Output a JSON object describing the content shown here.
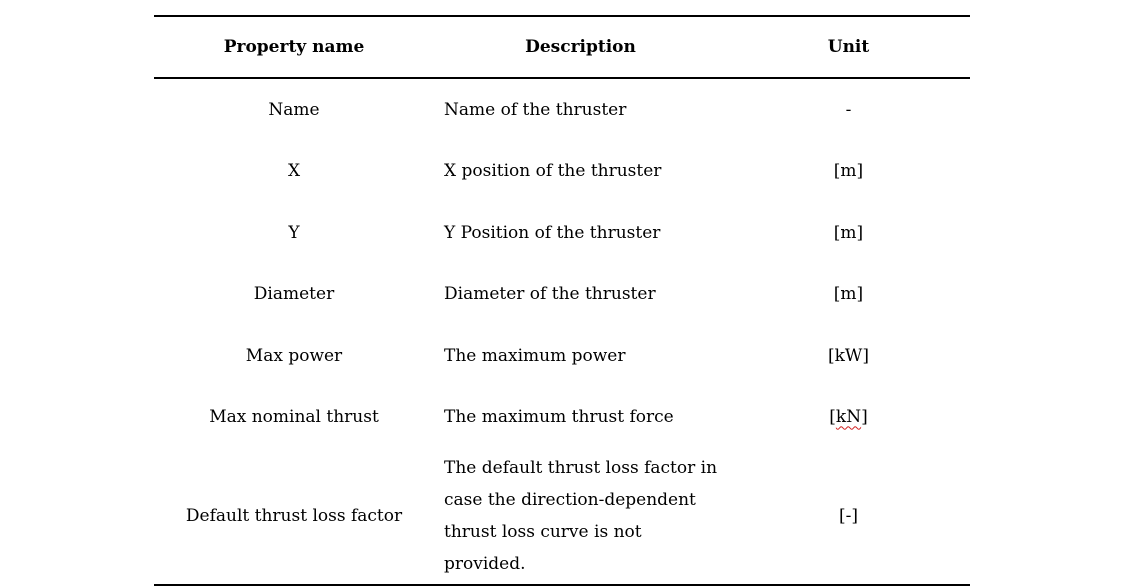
{
  "table": {
    "headers": [
      "Property name",
      "Description",
      "Unit"
    ],
    "rows": [
      {
        "name": "Name",
        "description": "Name of the thruster",
        "unit": "-"
      },
      {
        "name": "X",
        "description": "X position of the thruster",
        "unit": "[m]"
      },
      {
        "name": "Y",
        "description": "Y Position of the thruster",
        "unit": "[m]"
      },
      {
        "name": "Diameter",
        "description": "Diameter of the thruster",
        "unit": "[m]"
      },
      {
        "name": "Max power",
        "description": "The maximum power",
        "unit": "[kW]"
      },
      {
        "name": "Max nominal thrust",
        "description": "The maximum thrust force",
        "unit_open": "[",
        "unit_word": "kN",
        "unit_close": "]"
      },
      {
        "name": "Default thrust loss factor",
        "description_lines": [
          "The default thrust loss factor in",
          "case the direction-dependent",
          "thrust loss curve is not provided."
        ],
        "unit": "[-]"
      }
    ]
  }
}
